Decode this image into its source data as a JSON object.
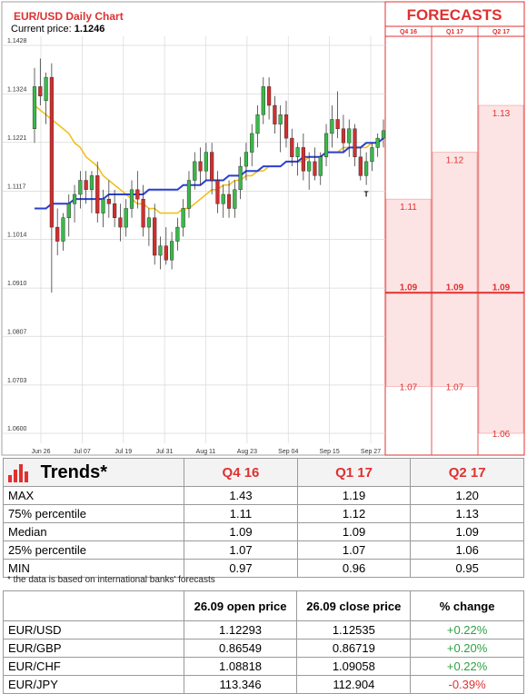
{
  "chart_data": [
    {
      "type": "candlestick",
      "title": "EUR/USD Daily Chart",
      "current_price_label": "Current price:",
      "current_price": "1.1246",
      "y_ticks": [
        "1.1428",
        "1.1324",
        "1.1221",
        "1.1117",
        "1.1014",
        "1.0910",
        "1.0807",
        "1.0703",
        "1.0600"
      ],
      "ylim": [
        1.06,
        1.1428
      ],
      "x_ticks": [
        "Jun 26",
        "Jul 07",
        "Jul 19",
        "Jul 31",
        "Aug 11",
        "Aug 23",
        "Sep 04",
        "Sep 15",
        "Sep 27"
      ],
      "candles": [
        [
          1.125,
          1.138,
          1.122,
          1.134
        ],
        [
          1.134,
          1.14,
          1.13,
          1.132
        ],
        [
          1.131,
          1.137,
          1.126,
          1.136
        ],
        [
          1.136,
          1.139,
          1.09,
          1.104
        ],
        [
          1.104,
          1.108,
          1.098,
          1.101
        ],
        [
          1.101,
          1.107,
          1.099,
          1.106
        ],
        [
          1.106,
          1.111,
          1.102,
          1.109
        ],
        [
          1.109,
          1.113,
          1.105,
          1.111
        ],
        [
          1.111,
          1.116,
          1.108,
          1.114
        ],
        [
          1.114,
          1.116,
          1.109,
          1.112
        ],
        [
          1.112,
          1.116,
          1.107,
          1.115
        ],
        [
          1.115,
          1.118,
          1.105,
          1.107
        ],
        [
          1.107,
          1.112,
          1.104,
          1.11
        ],
        [
          1.11,
          1.114,
          1.106,
          1.109
        ],
        [
          1.109,
          1.112,
          1.104,
          1.106
        ],
        [
          1.106,
          1.109,
          1.101,
          1.104
        ],
        [
          1.104,
          1.11,
          1.102,
          1.108
        ],
        [
          1.108,
          1.114,
          1.106,
          1.112
        ],
        [
          1.112,
          1.116,
          1.108,
          1.11
        ],
        [
          1.11,
          1.113,
          1.102,
          1.104
        ],
        [
          1.104,
          1.108,
          1.1,
          1.106
        ],
        [
          1.106,
          1.109,
          1.096,
          1.098
        ],
        [
          1.098,
          1.102,
          1.095,
          1.1
        ],
        [
          1.1,
          1.104,
          1.096,
          1.097
        ],
        [
          1.097,
          1.103,
          1.095,
          1.101
        ],
        [
          1.101,
          1.106,
          1.099,
          1.104
        ],
        [
          1.104,
          1.11,
          1.102,
          1.108
        ],
        [
          1.108,
          1.116,
          1.106,
          1.114
        ],
        [
          1.114,
          1.12,
          1.112,
          1.118
        ],
        [
          1.118,
          1.121,
          1.113,
          1.116
        ],
        [
          1.116,
          1.122,
          1.114,
          1.12
        ],
        [
          1.12,
          1.122,
          1.111,
          1.114
        ],
        [
          1.114,
          1.116,
          1.107,
          1.109
        ],
        [
          1.109,
          1.113,
          1.106,
          1.111
        ],
        [
          1.111,
          1.114,
          1.106,
          1.108
        ],
        [
          1.108,
          1.114,
          1.106,
          1.112
        ],
        [
          1.112,
          1.119,
          1.11,
          1.117
        ],
        [
          1.117,
          1.122,
          1.114,
          1.12
        ],
        [
          1.12,
          1.126,
          1.117,
          1.124
        ],
        [
          1.124,
          1.13,
          1.121,
          1.128
        ],
        [
          1.128,
          1.136,
          1.126,
          1.134
        ],
        [
          1.134,
          1.136,
          1.127,
          1.13
        ],
        [
          1.13,
          1.132,
          1.124,
          1.126
        ],
        [
          1.126,
          1.13,
          1.12,
          1.128
        ],
        [
          1.128,
          1.131,
          1.121,
          1.123
        ],
        [
          1.123,
          1.125,
          1.117,
          1.119
        ],
        [
          1.119,
          1.122,
          1.115,
          1.121
        ],
        [
          1.121,
          1.124,
          1.114,
          1.116
        ],
        [
          1.116,
          1.12,
          1.112,
          1.118
        ],
        [
          1.118,
          1.121,
          1.114,
          1.115
        ],
        [
          1.115,
          1.12,
          1.113,
          1.119
        ],
        [
          1.119,
          1.126,
          1.117,
          1.124
        ],
        [
          1.124,
          1.13,
          1.121,
          1.127
        ],
        [
          1.127,
          1.133,
          1.123,
          1.125
        ],
        [
          1.125,
          1.128,
          1.12,
          1.122
        ],
        [
          1.122,
          1.127,
          1.119,
          1.125
        ],
        [
          1.125,
          1.126,
          1.117,
          1.119
        ],
        [
          1.119,
          1.121,
          1.114,
          1.115
        ],
        [
          1.115,
          1.12,
          1.113,
          1.118
        ],
        [
          1.118,
          1.122,
          1.116,
          1.121
        ],
        [
          1.121,
          1.124,
          1.119,
          1.123
        ],
        [
          1.123,
          1.127,
          1.121,
          1.1246
        ]
      ],
      "annotations": [
        {
          "text": "T",
          "x_index": 58,
          "y": 1.1125
        }
      ],
      "sma_fast": [
        1.13,
        1.129,
        1.128,
        1.127,
        1.126,
        1.125,
        1.124,
        1.122,
        1.121,
        1.119,
        1.118,
        1.117,
        1.115,
        1.114,
        1.113,
        1.112,
        1.111,
        1.11,
        1.109,
        1.109,
        1.108,
        1.108,
        1.107,
        1.107,
        1.107,
        1.107,
        1.108,
        1.108,
        1.109,
        1.11,
        1.111,
        1.112,
        1.112,
        1.113,
        1.113,
        1.114,
        1.114,
        1.115,
        1.115,
        1.116,
        1.116,
        1.117,
        1.117,
        1.117,
        1.118,
        1.118,
        1.118,
        1.118,
        1.119,
        1.119,
        1.119,
        1.12,
        1.12,
        1.12,
        1.121,
        1.121,
        1.121,
        1.121,
        1.121,
        1.122,
        1.122,
        1.123
      ],
      "sma_slow": [
        1.108,
        1.108,
        1.108,
        1.109,
        1.109,
        1.109,
        1.109,
        1.11,
        1.11,
        1.11,
        1.11,
        1.11,
        1.11,
        1.111,
        1.111,
        1.111,
        1.111,
        1.111,
        1.111,
        1.111,
        1.112,
        1.112,
        1.112,
        1.112,
        1.112,
        1.112,
        1.113,
        1.113,
        1.113,
        1.113,
        1.114,
        1.114,
        1.114,
        1.114,
        1.115,
        1.115,
        1.115,
        1.116,
        1.116,
        1.116,
        1.117,
        1.117,
        1.117,
        1.117,
        1.118,
        1.118,
        1.118,
        1.119,
        1.119,
        1.119,
        1.119,
        1.12,
        1.12,
        1.12,
        1.12,
        1.121,
        1.121,
        1.121,
        1.122,
        1.122,
        1.122,
        1.123
      ]
    },
    {
      "type": "bar",
      "title": "FORECASTS",
      "categories": [
        "Q4 16",
        "Q1 17",
        "Q2 17"
      ],
      "ylim": [
        1.06,
        1.1428
      ],
      "ranges": [
        {
          "top": 1.11,
          "bottom": 1.07,
          "median": 1.09
        },
        {
          "top": 1.12,
          "bottom": 1.07,
          "median": 1.09
        },
        {
          "top": 1.13,
          "bottom": 1.06,
          "median": 1.09
        }
      ],
      "labels": [
        [
          "1.11",
          "1.09",
          "1.07"
        ],
        [
          "1.12",
          "1.09",
          "1.07"
        ],
        [
          "1.13",
          "1.09",
          "1.06"
        ]
      ]
    }
  ],
  "colors": {
    "bull": "#3bb84a",
    "bear": "#d02f2f",
    "sma_fast": "#f0c020",
    "sma_slow": "#2a3fcf",
    "accent": "#e03030"
  },
  "trends": {
    "title": "Trends*",
    "icon": "bar-chart-icon",
    "columns": [
      "Q4 16",
      "Q1 17",
      "Q2 17"
    ],
    "rows": [
      {
        "label": "MAX",
        "values": [
          "1.43",
          "1.19",
          "1.20"
        ]
      },
      {
        "label": "75% percentile",
        "values": [
          "1.11",
          "1.12",
          "1.13"
        ]
      },
      {
        "label": "Median",
        "values": [
          "1.09",
          "1.09",
          "1.09"
        ]
      },
      {
        "label": "25% percentile",
        "values": [
          "1.07",
          "1.07",
          "1.06"
        ]
      },
      {
        "label": "MIN",
        "values": [
          "0.97",
          "0.96",
          "0.95"
        ]
      }
    ],
    "footnote": "* the data is based on international banks' forecasts"
  },
  "prices": {
    "columns": [
      "26.09 open price",
      "26.09 close price",
      "% change"
    ],
    "rows": [
      {
        "pair": "EUR/USD",
        "open": "1.12293",
        "close": "1.12535",
        "change": "+0.22%",
        "dir": "pos"
      },
      {
        "pair": "EUR/GBP",
        "open": "0.86549",
        "close": "0.86719",
        "change": "+0.20%",
        "dir": "pos"
      },
      {
        "pair": "EUR/CHF",
        "open": "1.08818",
        "close": "1.09058",
        "change": "+0.22%",
        "dir": "pos"
      },
      {
        "pair": "EUR/JPY",
        "open": "113.346",
        "close": "112.904",
        "change": "-0.39%",
        "dir": "neg"
      }
    ]
  }
}
